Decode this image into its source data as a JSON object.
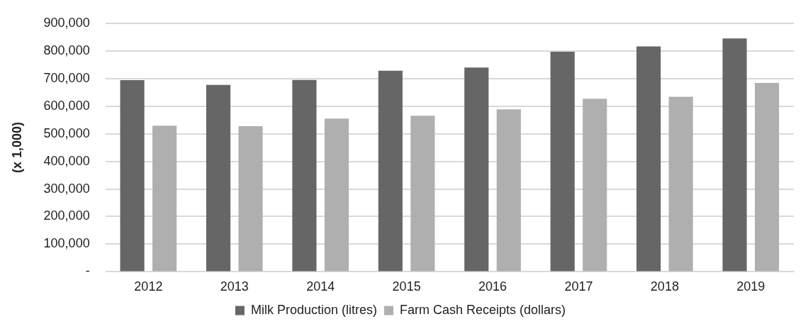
{
  "chart_data": {
    "type": "bar",
    "ylabel": "(x 1,000)",
    "categories": [
      "2012",
      "2013",
      "2014",
      "2015",
      "2016",
      "2017",
      "2018",
      "2019"
    ],
    "series": [
      {
        "name": "Milk Production (litres)",
        "color": "#666666",
        "values": [
          694000,
          677000,
          695000,
          728000,
          740000,
          797000,
          816000,
          845000
        ]
      },
      {
        "name": "Farm Cash Receipts (dollars)",
        "color": "#afafaf",
        "values": [
          529000,
          527000,
          555000,
          565000,
          588000,
          627000,
          634000,
          684000
        ]
      }
    ],
    "ylim": [
      0,
      900000
    ],
    "yticks": [
      {
        "value": 0,
        "label": "-"
      },
      {
        "value": 100000,
        "label": "100,000"
      },
      {
        "value": 200000,
        "label": "200,000"
      },
      {
        "value": 300000,
        "label": "300,000"
      },
      {
        "value": 400000,
        "label": "400,000"
      },
      {
        "value": 500000,
        "label": "500,000"
      },
      {
        "value": 600000,
        "label": "600,000"
      },
      {
        "value": 700000,
        "label": "700,000"
      },
      {
        "value": 800000,
        "label": "800,000"
      },
      {
        "value": 900000,
        "label": "900,000"
      }
    ],
    "grid": "y",
    "legend": "bottom"
  }
}
